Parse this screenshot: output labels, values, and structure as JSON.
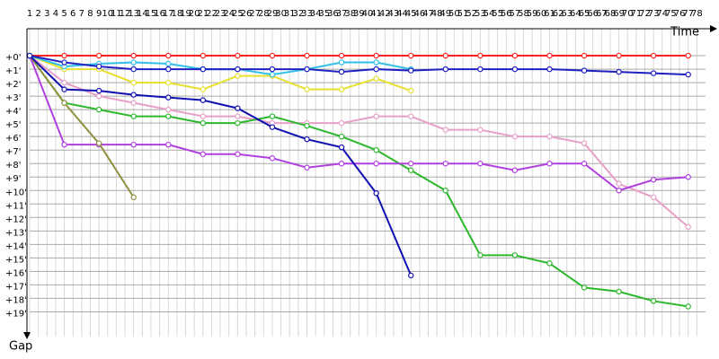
{
  "chart_data": {
    "type": "line",
    "x_label": "Time",
    "y_label": "Gap",
    "x": [
      1,
      5,
      9,
      13,
      17,
      21,
      25,
      29,
      33,
      37,
      41,
      45,
      49,
      53,
      57,
      61,
      65,
      69,
      73,
      77
    ],
    "xlim": [
      1,
      79
    ],
    "ylim": [
      -2,
      21.5
    ],
    "inverted_y": true,
    "grid": true,
    "xticks": [
      1,
      2,
      3,
      4,
      5,
      6,
      7,
      8,
      9,
      10,
      11,
      12,
      13,
      14,
      15,
      16,
      17,
      18,
      19,
      20,
      21,
      22,
      23,
      24,
      25,
      26,
      27,
      28,
      29,
      30,
      31,
      32,
      33,
      34,
      35,
      36,
      37,
      38,
      39,
      40,
      41,
      42,
      43,
      44,
      45,
      46,
      47,
      48,
      49,
      50,
      51,
      52,
      53,
      54,
      55,
      56,
      57,
      58,
      59,
      60,
      61,
      62,
      63,
      64,
      65,
      66,
      67,
      68,
      69,
      70,
      71,
      72,
      73,
      74,
      75,
      76,
      77,
      78
    ],
    "yticks": [
      {
        "value": 0,
        "label": "+0'"
      },
      {
        "value": 1,
        "label": "+1'"
      },
      {
        "value": 2,
        "label": "+2'"
      },
      {
        "value": 3,
        "label": "+3'"
      },
      {
        "value": 4,
        "label": "+4'"
      },
      {
        "value": 5,
        "label": "+5'"
      },
      {
        "value": 6,
        "label": "+6'"
      },
      {
        "value": 7,
        "label": "+7'"
      },
      {
        "value": 8,
        "label": "+8'"
      },
      {
        "value": 9,
        "label": "+9'"
      },
      {
        "value": 10,
        "label": "+10'"
      },
      {
        "value": 11,
        "label": "+11'"
      },
      {
        "value": 12,
        "label": "+12'"
      },
      {
        "value": 13,
        "label": "+13'"
      },
      {
        "value": 14,
        "label": "+14'"
      },
      {
        "value": 15,
        "label": "+15'"
      },
      {
        "value": 16,
        "label": "+16'"
      },
      {
        "value": 17,
        "label": "+17'"
      },
      {
        "value": 18,
        "label": "+18'"
      },
      {
        "value": 19,
        "label": "+19'"
      }
    ],
    "series": [
      {
        "color": "#e8a0c8",
        "values": [
          0,
          2,
          3,
          3.5,
          4,
          4.5,
          4.5,
          5,
          5,
          5,
          4.5,
          4.5,
          5.5,
          5.5,
          6,
          6,
          6.5,
          9.5,
          10.5,
          12.7
        ]
      },
      {
        "color": "#ff2020",
        "values": [
          0,
          0,
          0,
          0,
          0,
          0,
          0,
          0,
          0,
          0,
          0,
          0,
          0,
          0,
          0,
          0,
          0,
          0,
          0,
          0
        ]
      },
      {
        "color": "#2db82d",
        "values": [
          0,
          3.5,
          4,
          4.5,
          4.5,
          5,
          5,
          4.5,
          5.2,
          6,
          7,
          8.5,
          10,
          14.8,
          14.8,
          15.4,
          17.2,
          17.5,
          18.2,
          18.6
        ]
      },
      {
        "color": "#b040e0",
        "values": [
          0,
          6.6,
          6.6,
          6.6,
          6.6,
          7.3,
          7.3,
          7.6,
          8.3,
          8,
          8,
          8,
          8,
          8,
          8.5,
          8,
          8,
          10,
          9.2,
          9
        ]
      },
      {
        "color": "#909040",
        "values": [
          0,
          3.5,
          6.5,
          10.5,
          null,
          null,
          null,
          null,
          null,
          null,
          null,
          null,
          null,
          null,
          null,
          null,
          null,
          null,
          null,
          null
        ]
      },
      {
        "color": "#e8e030",
        "values": [
          0,
          1,
          1,
          2,
          2,
          2.5,
          1.5,
          1.5,
          2.5,
          2.5,
          1.7,
          2.6,
          null,
          null,
          null,
          null,
          null,
          null,
          null,
          null
        ]
      },
      {
        "color": "#30c0e8",
        "values": [
          0,
          0.8,
          0.6,
          0.5,
          0.6,
          1,
          1,
          1.4,
          1,
          0.5,
          0.5,
          1,
          null,
          null,
          null,
          null,
          null,
          null,
          null,
          null
        ]
      },
      {
        "color": "#1010b0",
        "values": [
          0,
          2.5,
          2.6,
          2.9,
          3.1,
          3.3,
          3.9,
          5.3,
          6.2,
          6.8,
          10.2,
          16.3,
          null,
          null,
          null,
          null,
          null,
          null,
          null,
          null
        ]
      },
      {
        "color": "#2020c0",
        "values": [
          0,
          0.5,
          0.8,
          1,
          1,
          1,
          1,
          1,
          1,
          1.2,
          1,
          1.1,
          1,
          1,
          1,
          1,
          1.1,
          1.2,
          1.3,
          1.4
        ]
      }
    ]
  }
}
